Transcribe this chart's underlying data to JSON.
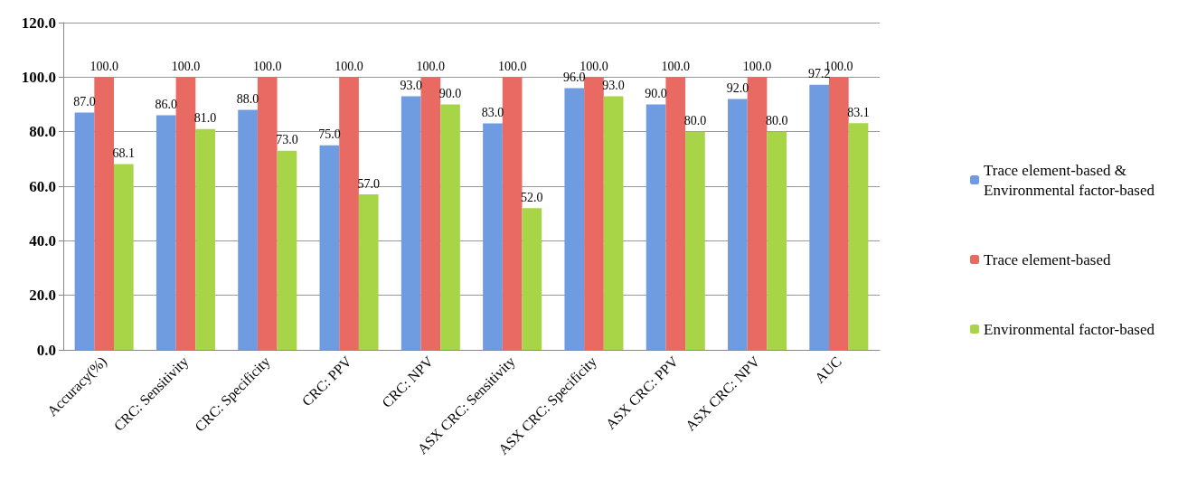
{
  "chart_data": {
    "type": "bar",
    "categories": [
      "Accuracy(%)",
      "CRC: Sensitivity",
      "CRC: Specificity",
      "CRC: PPV",
      "CRC: NPV",
      "ASX CRC: Sensitivity",
      "ASX CRC: Specificity",
      "ASX CRC: PPV",
      "ASX CRC: NPV",
      "AUC"
    ],
    "series": [
      {
        "name": "Trace element-based & Environmental factor-based",
        "color": "#6f9be0",
        "values": [
          87.0,
          86.0,
          88.0,
          75.0,
          93.0,
          83.0,
          96.0,
          90.0,
          92.0,
          97.2
        ],
        "value_labels": [
          "87.0",
          "86.0",
          "88.0",
          "75.0",
          "93.0",
          "83.0",
          "96.0",
          "90.0",
          "92.0",
          "97.2"
        ]
      },
      {
        "name": "Trace element-based",
        "color": "#e86a63",
        "values": [
          100,
          100,
          100,
          100,
          100,
          100,
          100,
          100,
          100,
          100
        ],
        "value_labels": [
          "100.0",
          "100.0",
          "100.0",
          "100.0",
          "100.0",
          "100.0",
          "100.0",
          "100.0",
          "100.0",
          "100.0"
        ]
      },
      {
        "name": "Environmental factor-based",
        "color": "#a8d548",
        "values": [
          68.1,
          81.0,
          73.0,
          57.0,
          90.0,
          52.0,
          93.0,
          80.0,
          80.0,
          83.1
        ],
        "value_labels": [
          "68.1",
          "81.0",
          "73.0",
          "57.0",
          "90.0",
          "52.0",
          "93.0",
          "80.0",
          "80.0",
          "83.1"
        ]
      }
    ],
    "ylim": [
      0,
      120
    ],
    "yticks": [
      {
        "value": 0,
        "label": "0.0"
      },
      {
        "value": 20,
        "label": "20.0"
      },
      {
        "value": 40,
        "label": "40.0"
      },
      {
        "value": 60,
        "label": "60.0"
      },
      {
        "value": 80,
        "label": "80.0"
      },
      {
        "value": 100,
        "label": "100.0"
      },
      {
        "value": 120,
        "label": "120.0"
      }
    ],
    "grid": "y",
    "legend": "right"
  }
}
